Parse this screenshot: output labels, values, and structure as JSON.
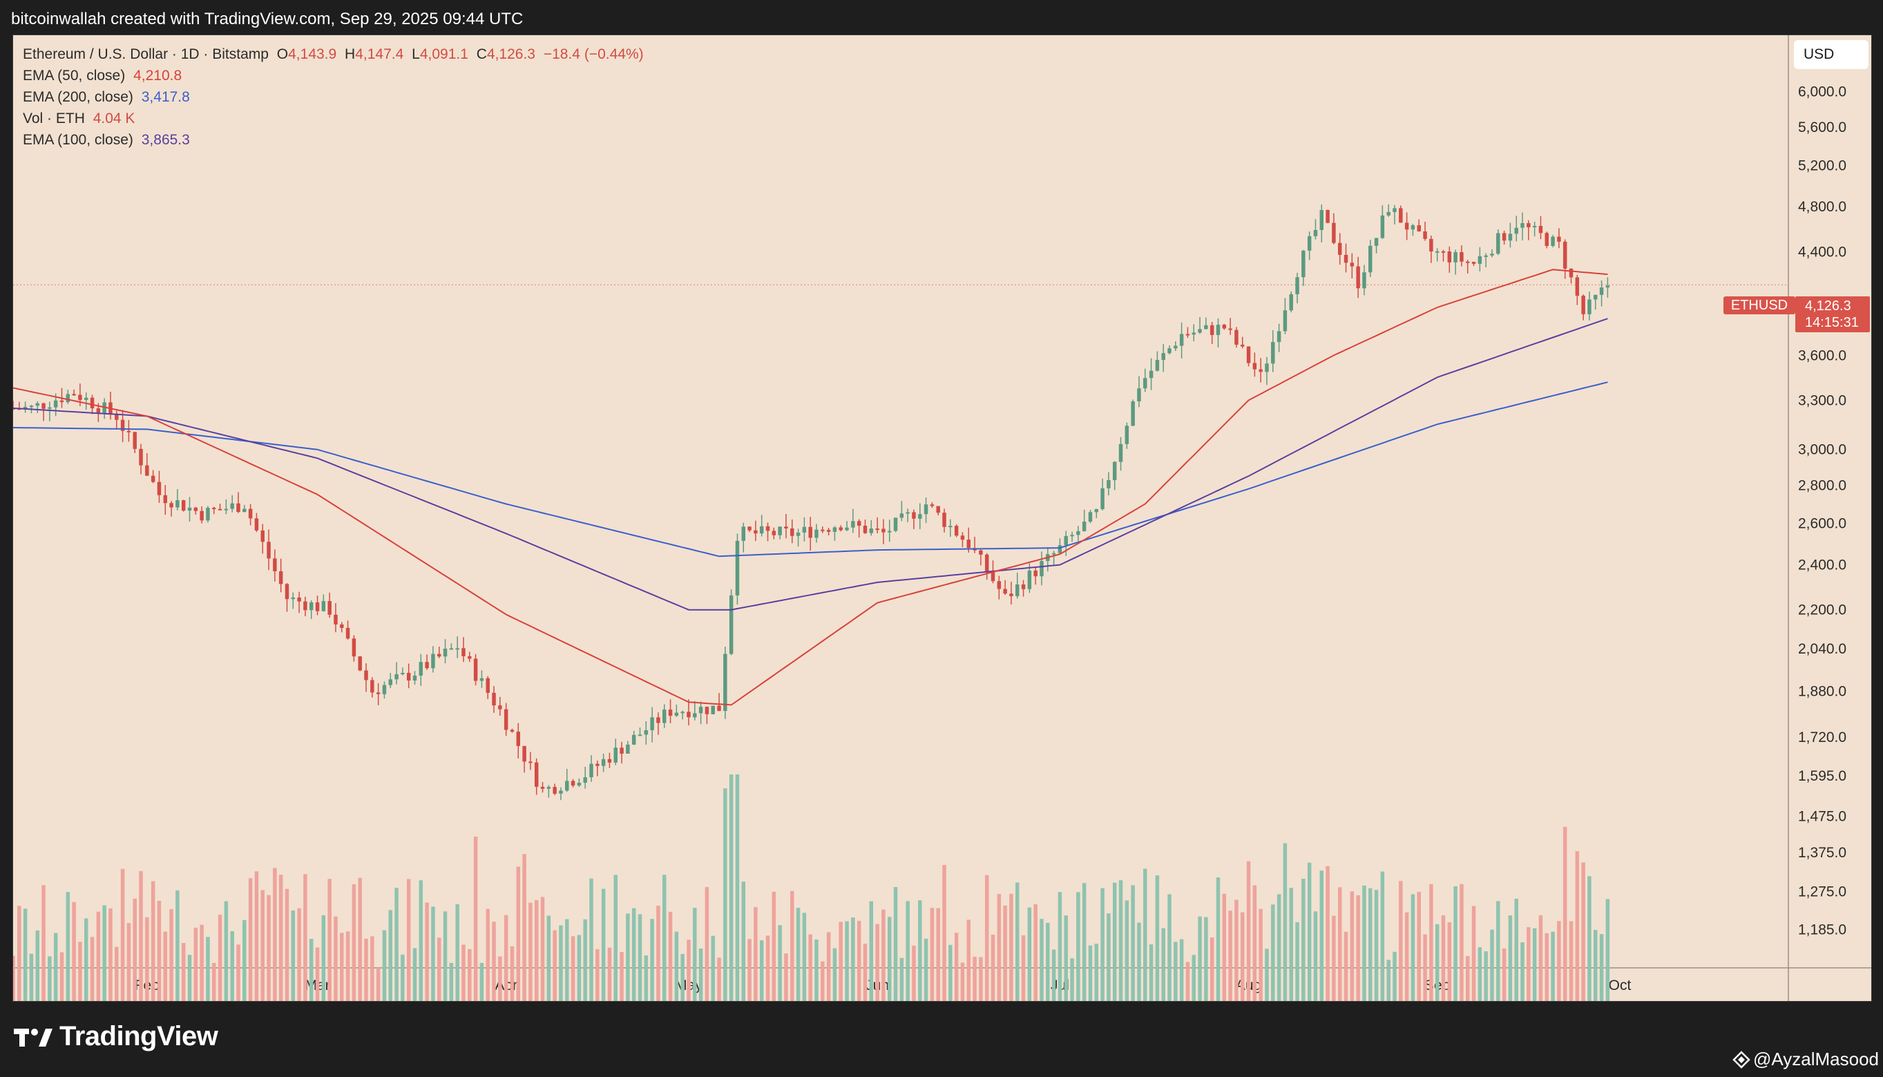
{
  "caption": "bitcoinwallah created with TradingView.com, Sep 29, 2025 09:44 UTC",
  "legend": {
    "symbol": "Ethereum / U.S. Dollar · 1D · Bitstamp",
    "open_key": "O",
    "open_val": "4,143.9",
    "high_key": "H",
    "high_val": "4,147.4",
    "low_key": "L",
    "low_val": "4,091.1",
    "close_key": "C",
    "close_val": "4,126.3",
    "change": "−18.4 (−0.44%)",
    "ema50_label": "EMA (50, close)",
    "ema50_val": "4,210.8",
    "ema200_label": "EMA (200, close)",
    "ema200_val": "3,417.8",
    "vol_label": "Vol · ETH",
    "vol_val": "4.04 K",
    "ema100_label": "EMA (100, close)",
    "ema100_val": "3,865.3"
  },
  "currency_button": "USD",
  "price_tag": {
    "symbol": "ETHUSD",
    "price": "4,126.3",
    "countdown": "14:15:31"
  },
  "brand": "TradingView",
  "handle": "@AyzalMasood",
  "colors": {
    "background": "#f2e1d0",
    "up": "#5b9a82",
    "down": "#d24b45",
    "vol_up": "#8ec3b0",
    "vol_down": "#eea39c",
    "ema50": "#d9413d",
    "ema100": "#5a3fa0",
    "ema200": "#3a5fcc"
  },
  "chart_data": {
    "type": "candlestick",
    "title": "Ethereum / U.S. Dollar · 1D · Bitstamp",
    "scale": "log",
    "y_ticks": [
      "6,000.0",
      "5,600.0",
      "5,200.0",
      "4,800.0",
      "4,400.0",
      "3,600.0",
      "3,300.0",
      "3,000.0",
      "2,800.0",
      "2,600.0",
      "2,400.0",
      "2,200.0",
      "2,040.0",
      "1,880.0",
      "1,720.0",
      "1,595.0",
      "1,475.0",
      "1,375.0",
      "1,275.0",
      "1,185.0"
    ],
    "x_ticks": [
      "Feb",
      "Mar",
      "Apr",
      "May",
      "Jun",
      "Jul",
      "Aug",
      "Sep",
      "Oct"
    ],
    "ylim": [
      1130,
      6600
    ],
    "keypoints": [
      {
        "date": "2025-01-13",
        "close": 3250
      },
      {
        "date": "2025-01-20",
        "close": 3350
      },
      {
        "date": "2025-01-27",
        "close": 3200
      },
      {
        "date": "2025-02-03",
        "close": 2750
      },
      {
        "date": "2025-02-10",
        "close": 2650
      },
      {
        "date": "2025-02-17",
        "close": 2700
      },
      {
        "date": "2025-02-24",
        "close": 2250
      },
      {
        "date": "2025-03-03",
        "close": 2200
      },
      {
        "date": "2025-03-10",
        "close": 1880
      },
      {
        "date": "2025-03-17",
        "close": 1950
      },
      {
        "date": "2025-03-24",
        "close": 2050
      },
      {
        "date": "2025-03-31",
        "close": 1810
      },
      {
        "date": "2025-04-07",
        "close": 1550
      },
      {
        "date": "2025-04-14",
        "close": 1600
      },
      {
        "date": "2025-04-21",
        "close": 1700
      },
      {
        "date": "2025-04-28",
        "close": 1810
      },
      {
        "date": "2025-05-06",
        "close": 1820
      },
      {
        "date": "2025-05-09",
        "close": 2550
      },
      {
        "date": "2025-05-19",
        "close": 2550
      },
      {
        "date": "2025-05-26",
        "close": 2600
      },
      {
        "date": "2025-06-02",
        "close": 2550
      },
      {
        "date": "2025-06-09",
        "close": 2700
      },
      {
        "date": "2025-06-16",
        "close": 2500
      },
      {
        "date": "2025-06-22",
        "close": 2250
      },
      {
        "date": "2025-06-30",
        "close": 2450
      },
      {
        "date": "2025-07-07",
        "close": 2650
      },
      {
        "date": "2025-07-14",
        "close": 3400
      },
      {
        "date": "2025-07-21",
        "close": 3750
      },
      {
        "date": "2025-07-28",
        "close": 3800
      },
      {
        "date": "2025-08-03",
        "close": 3450
      },
      {
        "date": "2025-08-09",
        "close": 4250
      },
      {
        "date": "2025-08-13",
        "close": 4700
      },
      {
        "date": "2025-08-19",
        "close": 4150
      },
      {
        "date": "2025-08-24",
        "close": 4800
      },
      {
        "date": "2025-08-31",
        "close": 4400
      },
      {
        "date": "2025-09-07",
        "close": 4300
      },
      {
        "date": "2025-09-14",
        "close": 4650
      },
      {
        "date": "2025-09-21",
        "close": 4450
      },
      {
        "date": "2025-09-25",
        "close": 3900
      },
      {
        "date": "2025-09-29",
        "close": 4126.3
      }
    ],
    "ema50_keypoints": [
      {
        "date": "2025-01-10",
        "value": 3380
      },
      {
        "date": "2025-02-01",
        "value": 3200
      },
      {
        "date": "2025-03-01",
        "value": 2750
      },
      {
        "date": "2025-04-01",
        "value": 2180
      },
      {
        "date": "2025-05-01",
        "value": 1840
      },
      {
        "date": "2025-05-08",
        "value": 1830
      },
      {
        "date": "2025-06-01",
        "value": 2230
      },
      {
        "date": "2025-07-01",
        "value": 2450
      },
      {
        "date": "2025-07-15",
        "value": 2700
      },
      {
        "date": "2025-08-01",
        "value": 3300
      },
      {
        "date": "2025-08-15",
        "value": 3600
      },
      {
        "date": "2025-09-01",
        "value": 3950
      },
      {
        "date": "2025-09-20",
        "value": 4250
      },
      {
        "date": "2025-09-29",
        "value": 4210.8
      }
    ],
    "ema100_keypoints": [
      {
        "date": "2025-01-10",
        "value": 3250
      },
      {
        "date": "2025-02-01",
        "value": 3200
      },
      {
        "date": "2025-03-01",
        "value": 2950
      },
      {
        "date": "2025-04-01",
        "value": 2550
      },
      {
        "date": "2025-05-01",
        "value": 2200
      },
      {
        "date": "2025-05-08",
        "value": 2200
      },
      {
        "date": "2025-06-01",
        "value": 2320
      },
      {
        "date": "2025-07-01",
        "value": 2400
      },
      {
        "date": "2025-08-01",
        "value": 2850
      },
      {
        "date": "2025-09-01",
        "value": 3450
      },
      {
        "date": "2025-09-29",
        "value": 3865.3
      }
    ],
    "ema200_keypoints": [
      {
        "date": "2025-01-10",
        "value": 3130
      },
      {
        "date": "2025-02-01",
        "value": 3120
      },
      {
        "date": "2025-03-01",
        "value": 3000
      },
      {
        "date": "2025-04-01",
        "value": 2700
      },
      {
        "date": "2025-05-06",
        "value": 2440
      },
      {
        "date": "2025-06-01",
        "value": 2470
      },
      {
        "date": "2025-07-01",
        "value": 2480
      },
      {
        "date": "2025-08-01",
        "value": 2780
      },
      {
        "date": "2025-09-01",
        "value": 3150
      },
      {
        "date": "2025-09-29",
        "value": 3417.8
      }
    ]
  }
}
